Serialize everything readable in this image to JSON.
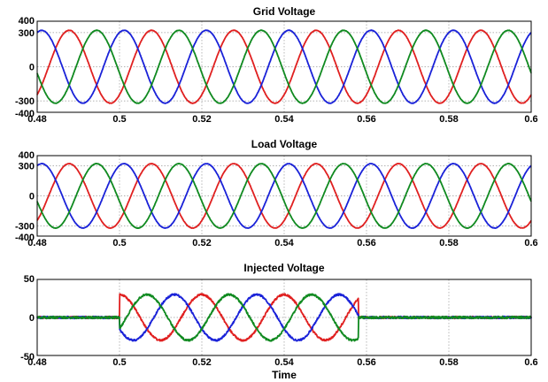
{
  "colors": {
    "phase_a": "#e02020",
    "phase_b": "#1a22d8",
    "phase_c": "#108a20"
  },
  "chart_data": [
    {
      "type": "line",
      "title": "Grid Voltage",
      "xlabel": "",
      "ylabel": "",
      "xlim": [
        0.48,
        0.6
      ],
      "ylim": [
        -400,
        400
      ],
      "xticks": [
        0.48,
        0.5,
        0.52,
        0.54,
        0.56,
        0.58,
        0.6
      ],
      "xtick_labels": [
        "0.48",
        "0.5",
        "0.52",
        "0.54",
        "0.56",
        "0.58",
        "0.6"
      ],
      "yticks": [
        -400,
        -300,
        0,
        300,
        400
      ],
      "ytick_labels": [
        "-400",
        "-300",
        "0",
        "300",
        "400"
      ],
      "grid": true,
      "frequency_hz": 50,
      "series": [
        {
          "amplitude": 320,
          "phase_deg": -50,
          "color": "#e02020"
        },
        {
          "amplitude": 320,
          "phase_deg": 70,
          "color": "#1a22d8"
        },
        {
          "amplitude": 320,
          "phase_deg": 190,
          "color": "#108a20"
        }
      ]
    },
    {
      "type": "line",
      "title": "Load Voltage",
      "xlabel": "",
      "ylabel": "",
      "xlim": [
        0.48,
        0.6
      ],
      "ylim": [
        -400,
        400
      ],
      "xticks": [
        0.48,
        0.5,
        0.52,
        0.54,
        0.56,
        0.58,
        0.6
      ],
      "xtick_labels": [
        "0.48",
        "0.5",
        "0.52",
        "0.54",
        "0.56",
        "0.58",
        "0.6"
      ],
      "yticks": [
        -400,
        -300,
        0,
        300,
        400
      ],
      "ytick_labels": [
        "-400",
        "-300",
        "0",
        "300",
        "400"
      ],
      "grid": true,
      "frequency_hz": 50,
      "series": [
        {
          "amplitude": 320,
          "phase_deg": -50,
          "color": "#e02020"
        },
        {
          "amplitude": 320,
          "phase_deg": 70,
          "color": "#1a22d8"
        },
        {
          "amplitude": 320,
          "phase_deg": 190,
          "color": "#108a20"
        }
      ]
    },
    {
      "type": "line",
      "title": "Injected Voltage",
      "xlabel": "Time",
      "ylabel": "",
      "xlim": [
        0.48,
        0.6
      ],
      "ylim": [
        -50,
        50
      ],
      "xticks": [
        0.48,
        0.5,
        0.52,
        0.54,
        0.56,
        0.58,
        0.6
      ],
      "xtick_labels": [
        "0.48",
        "0.5",
        "0.52",
        "0.54",
        "0.56",
        "0.58",
        "0.6"
      ],
      "yticks": [
        -50,
        0,
        50
      ],
      "ytick_labels": [
        "-50",
        "0",
        "50"
      ],
      "grid": true,
      "frequency_hz": 50,
      "injection_window": [
        0.5,
        0.558
      ],
      "series": [
        {
          "amplitude": 30,
          "phase_deg": 90,
          "color": "#e02020"
        },
        {
          "amplitude": 30,
          "phase_deg": -150,
          "color": "#1a22d8"
        },
        {
          "amplitude": 30,
          "phase_deg": -30,
          "color": "#108a20"
        }
      ]
    }
  ]
}
